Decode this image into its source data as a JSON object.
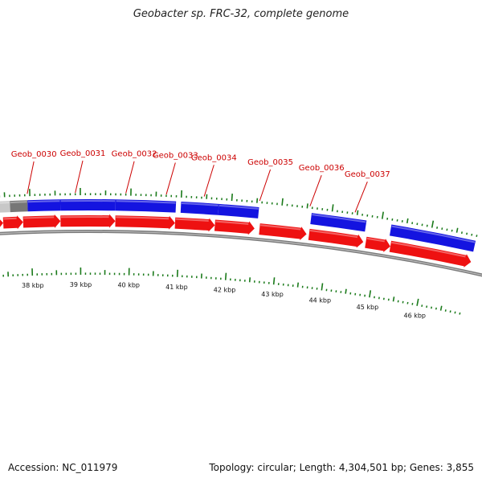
{
  "title": "Geobacter sp. FRC-32, complete genome",
  "footer": {
    "accession_label": "Accession:",
    "accession": "NC_011979",
    "summary": "Topology: circular; Length: 4,304,501 bp; Genes: 3,855"
  },
  "colors": {
    "forward_gene": "#1414e0",
    "reverse_gene": "#ee1111",
    "gene_label": "#cc0000",
    "tick": "#1a7a1a",
    "backbone": "#7a7a7a"
  },
  "genome_map": {
    "view_kbp": [
      37.2,
      46.9
    ],
    "gene_labels": [
      {
        "name": "Geob_0030",
        "kbp": 37.95
      },
      {
        "name": "Geob_0031",
        "kbp": 38.9
      },
      {
        "name": "Geob_0032",
        "kbp": 39.9
      },
      {
        "name": "Geob_0033",
        "kbp": 40.7
      },
      {
        "name": "Geob_0034",
        "kbp": 41.45
      },
      {
        "name": "Geob_0035",
        "kbp": 42.55
      },
      {
        "name": "Geob_0036",
        "kbp": 43.55
      },
      {
        "name": "Geob_0037",
        "kbp": 44.45
      }
    ],
    "scale_labels": [
      {
        "text": "38 kbp",
        "kbp": 38
      },
      {
        "text": "39 kbp",
        "kbp": 39
      },
      {
        "text": "40 kbp",
        "kbp": 40
      },
      {
        "text": "41 kbp",
        "kbp": 41
      },
      {
        "text": "42 kbp",
        "kbp": 42
      },
      {
        "text": "43 kbp",
        "kbp": 43
      },
      {
        "text": "44 kbp",
        "kbp": 44
      },
      {
        "text": "45 kbp",
        "kbp": 45
      },
      {
        "text": "46 kbp",
        "kbp": 46
      }
    ],
    "forward_genes": [
      {
        "start_kbp": 37.2,
        "end_kbp": 37.6,
        "shade": "light-gray"
      },
      {
        "start_kbp": 37.6,
        "end_kbp": 37.95,
        "shade": "dark-gray"
      },
      {
        "start_kbp": 37.95,
        "end_kbp": 38.6
      },
      {
        "start_kbp": 38.6,
        "end_kbp": 39.7
      },
      {
        "start_kbp": 39.7,
        "end_kbp": 40.9
      },
      {
        "start_kbp": 41.0,
        "end_kbp": 41.75
      },
      {
        "start_kbp": 41.75,
        "end_kbp": 42.55
      },
      {
        "start_kbp": 43.6,
        "end_kbp": 44.7
      },
      {
        "start_kbp": 45.2,
        "end_kbp": 46.9
      }
    ],
    "reverse_genes": [
      {
        "start_kbp": 37.2,
        "end_kbp": 37.45
      },
      {
        "start_kbp": 37.45,
        "end_kbp": 37.85
      },
      {
        "start_kbp": 37.85,
        "end_kbp": 38.6
      },
      {
        "start_kbp": 38.6,
        "end_kbp": 39.7
      },
      {
        "start_kbp": 39.7,
        "end_kbp": 40.9
      },
      {
        "start_kbp": 40.9,
        "end_kbp": 41.7
      },
      {
        "start_kbp": 41.7,
        "end_kbp": 42.5
      },
      {
        "start_kbp": 42.6,
        "end_kbp": 43.55
      },
      {
        "start_kbp": 43.6,
        "end_kbp": 44.7
      },
      {
        "start_kbp": 44.75,
        "end_kbp": 45.25
      },
      {
        "start_kbp": 45.25,
        "end_kbp": 46.9
      }
    ]
  }
}
